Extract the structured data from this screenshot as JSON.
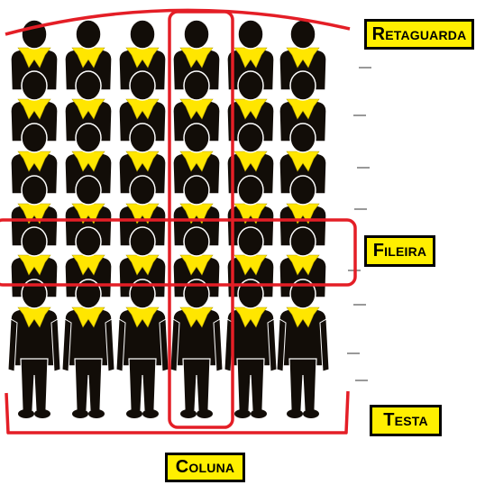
{
  "labels": {
    "retaguarda": "Retaguarda",
    "fileira": "Fileira",
    "testa": "Testa",
    "coluna": "Coluna"
  },
  "formation": {
    "columns": 6,
    "ranks": 6
  },
  "colors": {
    "figure": "#120d08",
    "scarf": "#ffe600",
    "outline": "#ffffff",
    "highlight": "#e41e26",
    "label_fill": "#ffef00",
    "label_border": "#000000"
  }
}
